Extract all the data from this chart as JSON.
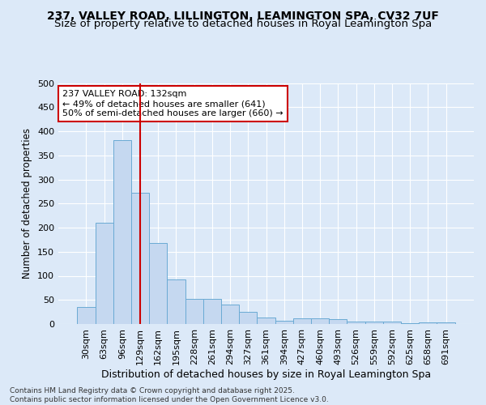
{
  "title1": "237, VALLEY ROAD, LILLINGTON, LEAMINGTON SPA, CV32 7UF",
  "title2": "Size of property relative to detached houses in Royal Leamington Spa",
  "xlabel": "Distribution of detached houses by size in Royal Leamington Spa",
  "ylabel": "Number of detached properties",
  "categories": [
    "30sqm",
    "63sqm",
    "96sqm",
    "129sqm",
    "162sqm",
    "195sqm",
    "228sqm",
    "261sqm",
    "294sqm",
    "327sqm",
    "361sqm",
    "394sqm",
    "427sqm",
    "460sqm",
    "493sqm",
    "526sqm",
    "559sqm",
    "592sqm",
    "625sqm",
    "658sqm",
    "691sqm"
  ],
  "values": [
    35,
    210,
    382,
    272,
    168,
    93,
    52,
    52,
    40,
    25,
    13,
    7,
    12,
    12,
    10,
    5,
    5,
    5,
    1,
    3,
    3
  ],
  "bar_color": "#c5d8f0",
  "bar_edge_color": "#6aaad4",
  "vline_index": 3,
  "vline_color": "#cc0000",
  "annotation_text": "237 VALLEY ROAD: 132sqm\n← 49% of detached houses are smaller (641)\n50% of semi-detached houses are larger (660) →",
  "annotation_box_facecolor": "#ffffff",
  "annotation_box_edgecolor": "#cc0000",
  "ylim": [
    0,
    500
  ],
  "yticks": [
    0,
    50,
    100,
    150,
    200,
    250,
    300,
    350,
    400,
    450,
    500
  ],
  "bg_color": "#dce9f8",
  "plot_bg_color": "#dce9f8",
  "grid_color": "#ffffff",
  "footer": "Contains HM Land Registry data © Crown copyright and database right 2025.\nContains public sector information licensed under the Open Government Licence v3.0.",
  "title1_fontsize": 10,
  "title2_fontsize": 9.5,
  "xlabel_fontsize": 9,
  "ylabel_fontsize": 8.5,
  "tick_fontsize": 8,
  "annotation_fontsize": 8,
  "footer_fontsize": 6.5
}
